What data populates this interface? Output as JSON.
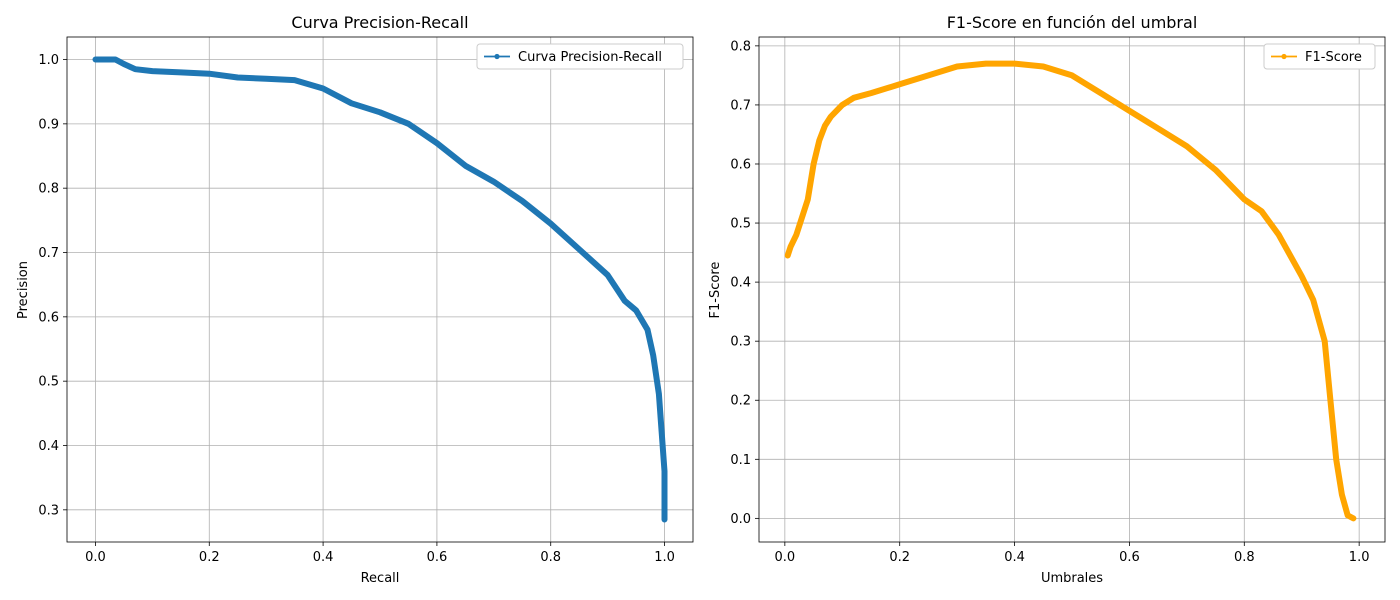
{
  "chart_data": [
    {
      "type": "line",
      "title": "Curva Precision-Recall",
      "xlabel": "Recall",
      "ylabel": "Precision",
      "xlim": [
        -0.05,
        1.05
      ],
      "ylim": [
        0.25,
        1.035
      ],
      "xticks": [
        "0.0",
        "0.2",
        "0.4",
        "0.6",
        "0.8",
        "1.0"
      ],
      "yticks": [
        "0.3",
        "0.4",
        "0.5",
        "0.6",
        "0.7",
        "0.8",
        "0.9",
        "1.0"
      ],
      "grid": true,
      "legend_position": "top-right",
      "series": [
        {
          "name": "Curva Precision-Recall",
          "color": "#1f77b4",
          "x": [
            0.0,
            0.02,
            0.035,
            0.05,
            0.07,
            0.1,
            0.15,
            0.2,
            0.25,
            0.3,
            0.35,
            0.4,
            0.45,
            0.5,
            0.55,
            0.6,
            0.65,
            0.7,
            0.75,
            0.8,
            0.85,
            0.9,
            0.93,
            0.95,
            0.97,
            0.98,
            0.99,
            0.995,
            1.0,
            1.0,
            1.0
          ],
          "y": [
            1.0,
            1.0,
            1.0,
            0.993,
            0.985,
            0.982,
            0.98,
            0.978,
            0.972,
            0.97,
            0.968,
            0.955,
            0.932,
            0.918,
            0.9,
            0.87,
            0.835,
            0.81,
            0.78,
            0.745,
            0.705,
            0.665,
            0.625,
            0.61,
            0.58,
            0.54,
            0.48,
            0.42,
            0.36,
            0.31,
            0.285
          ]
        }
      ]
    },
    {
      "type": "line",
      "title": "F1-Score en función del umbral",
      "xlabel": "Umbrales",
      "ylabel": "F1-Score",
      "xlim": [
        -0.045,
        1.045
      ],
      "ylim": [
        -0.04,
        0.815
      ],
      "xticks": [
        "0.0",
        "0.2",
        "0.4",
        "0.6",
        "0.8",
        "1.0"
      ],
      "yticks": [
        "0.0",
        "0.1",
        "0.2",
        "0.3",
        "0.4",
        "0.5",
        "0.6",
        "0.7",
        "0.8"
      ],
      "grid": true,
      "legend_position": "top-right",
      "series": [
        {
          "name": "F1-Score",
          "color": "#ffa500",
          "x": [
            0.005,
            0.01,
            0.02,
            0.03,
            0.04,
            0.05,
            0.06,
            0.07,
            0.08,
            0.1,
            0.12,
            0.15,
            0.2,
            0.25,
            0.3,
            0.35,
            0.4,
            0.45,
            0.5,
            0.55,
            0.6,
            0.65,
            0.7,
            0.75,
            0.8,
            0.83,
            0.86,
            0.9,
            0.92,
            0.94,
            0.95,
            0.96,
            0.97,
            0.98,
            0.99
          ],
          "y": [
            0.445,
            0.46,
            0.48,
            0.51,
            0.54,
            0.6,
            0.64,
            0.665,
            0.68,
            0.7,
            0.712,
            0.72,
            0.735,
            0.75,
            0.765,
            0.77,
            0.77,
            0.765,
            0.75,
            0.72,
            0.69,
            0.66,
            0.63,
            0.59,
            0.54,
            0.52,
            0.48,
            0.41,
            0.37,
            0.3,
            0.2,
            0.1,
            0.04,
            0.005,
            0.0
          ]
        }
      ]
    }
  ]
}
